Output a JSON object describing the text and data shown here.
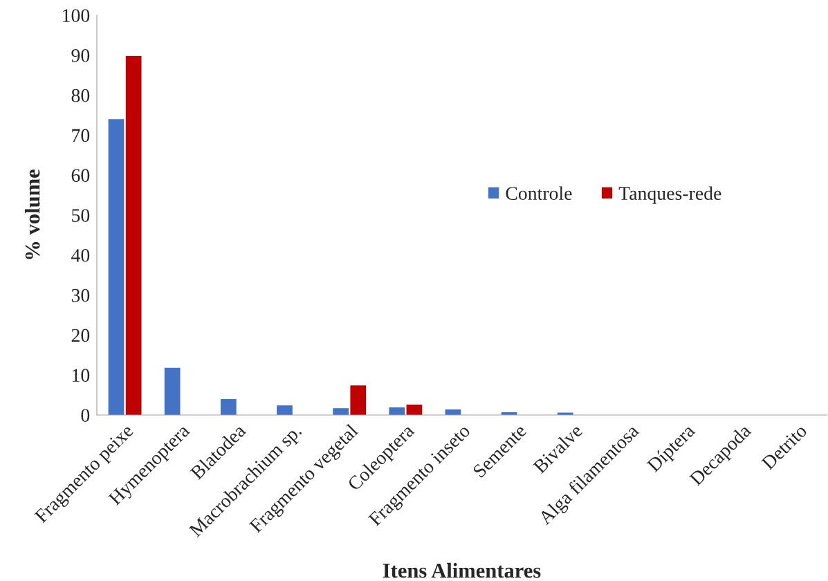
{
  "chart_data": {
    "type": "bar",
    "xlabel": "Itens Alimentares",
    "ylabel": "% volume",
    "categories": [
      "Fragmento peixe",
      "Hymenoptera",
      "Blatodea",
      "Macrobrachium sp.",
      "Fragmento vegetal",
      "Coleoptera",
      "Fragmento inseto",
      "Semente",
      "Bivalve",
      "Alga filamentosa",
      "Díptera",
      "Decapoda",
      "Detrito"
    ],
    "series": [
      {
        "name": "Controle",
        "color": "#4472c4",
        "values": [
          74.0,
          11.8,
          4.0,
          2.4,
          1.7,
          1.9,
          1.4,
          0.7,
          0.6,
          0,
          0,
          0,
          0
        ]
      },
      {
        "name": "Tanques-rede",
        "color": "#c00000",
        "values": [
          89.8,
          0,
          0,
          0,
          7.4,
          2.6,
          0,
          0,
          0,
          0,
          0,
          0,
          0
        ]
      }
    ],
    "ylim": [
      0,
      100
    ],
    "yticks": [
      0,
      10,
      20,
      30,
      40,
      50,
      60,
      70,
      80,
      90,
      100
    ],
    "grid": false,
    "legend": "right"
  }
}
